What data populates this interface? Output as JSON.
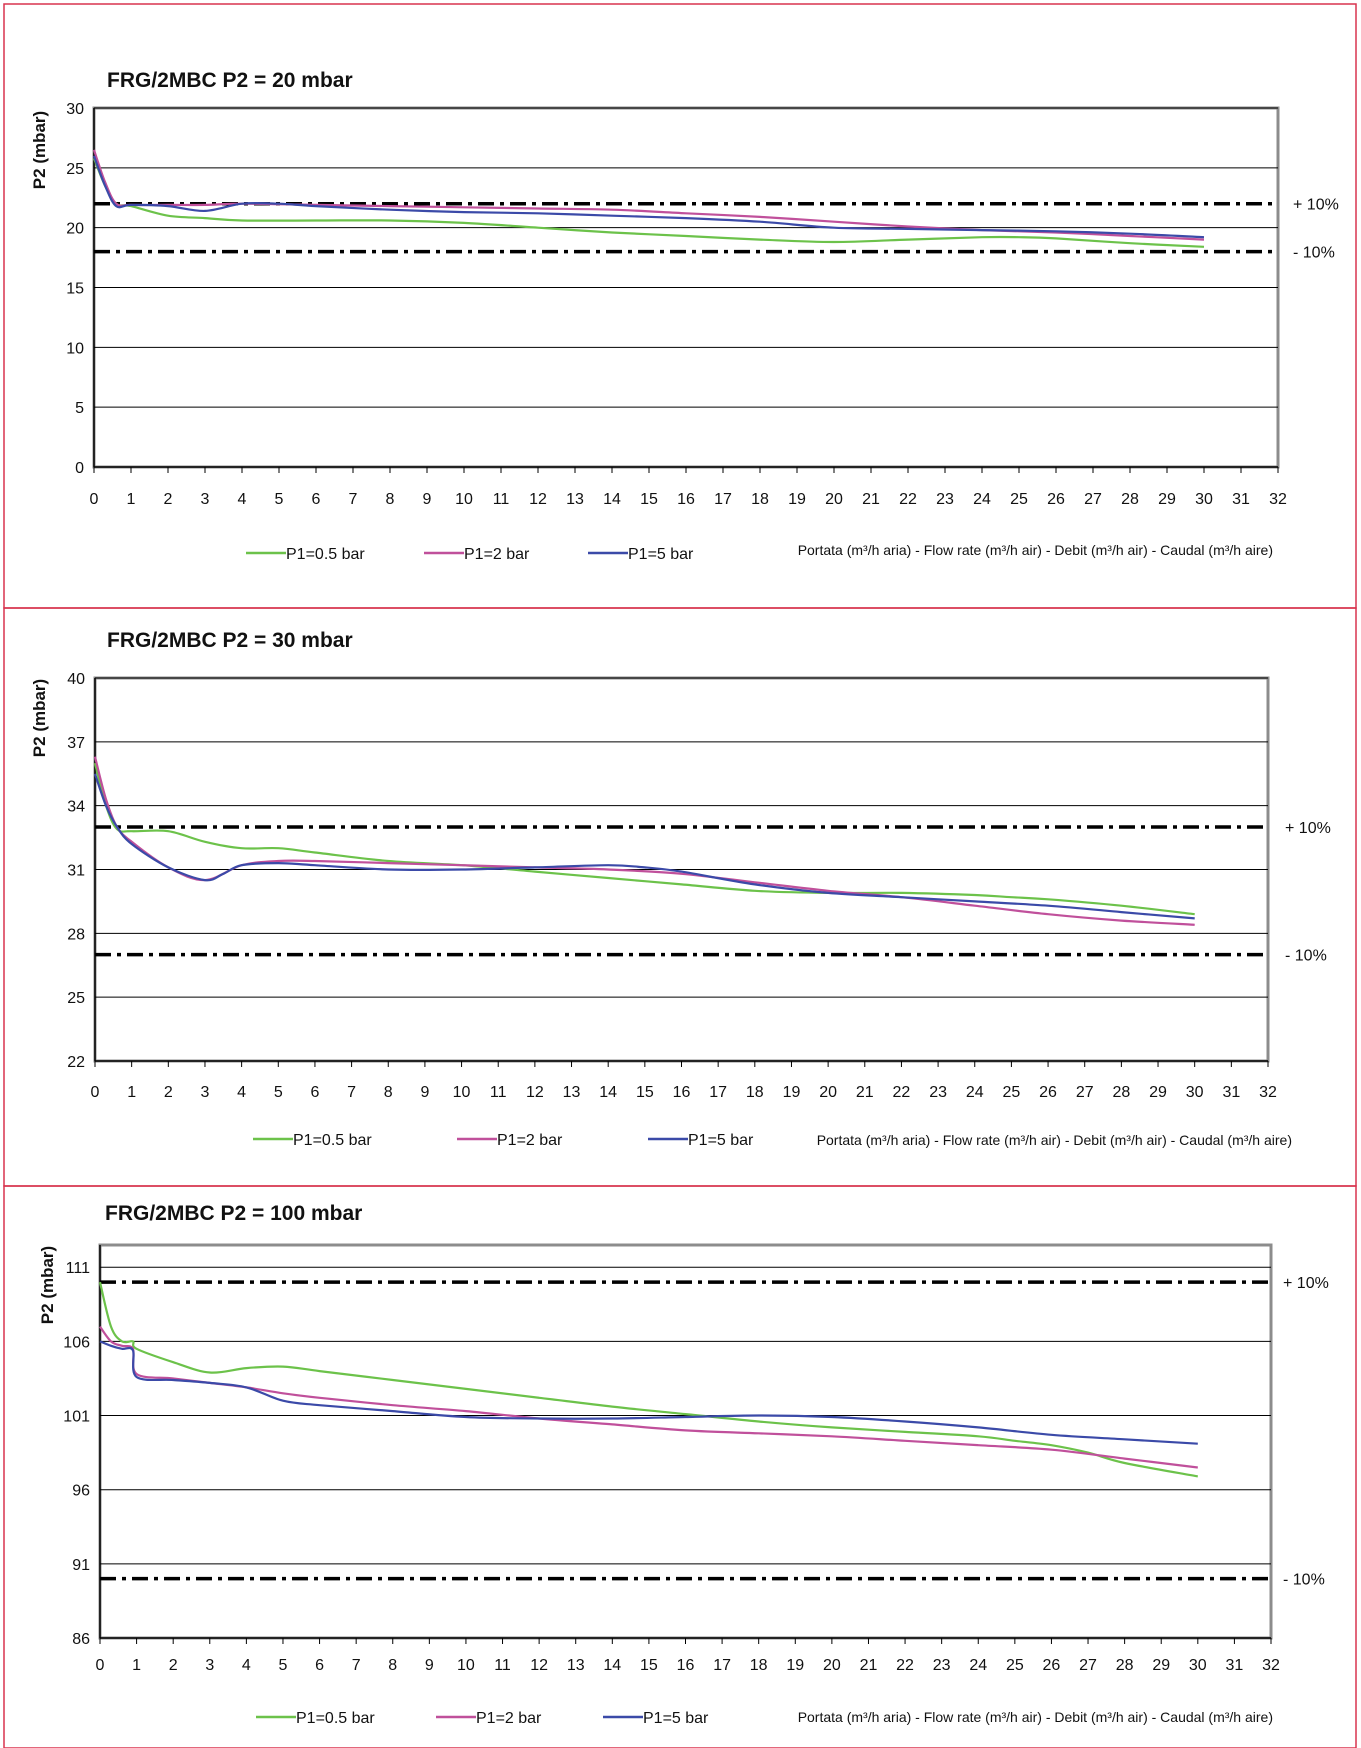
{
  "colors": {
    "frame": "#d8344f",
    "grid": "#000000",
    "plot_border": "#8c8c8c"
  },
  "chart_data": [
    {
      "type": "line",
      "title": "FRG/2MBC   P2 = 20 mbar",
      "ylabel": "P2 (mbar)",
      "xlabel": "Portata (m³/h aria) - Flow rate (m³/h air) - Debit (m³/h air) - Caudal (m³/h aire)",
      "xlim": [
        0,
        32
      ],
      "ylim": [
        0,
        30
      ],
      "x_ticks": [
        0,
        1,
        2,
        3,
        4,
        5,
        6,
        7,
        8,
        9,
        10,
        11,
        12,
        13,
        14,
        15,
        16,
        17,
        18,
        19,
        20,
        21,
        22,
        23,
        24,
        25,
        26,
        27,
        28,
        29,
        30,
        31,
        32
      ],
      "y_ticks": [
        0,
        5,
        10,
        15,
        20,
        25,
        30
      ],
      "tolerance": {
        "upper": 22,
        "lower": 18,
        "upper_label": "+ 10%",
        "lower_label": "- 10%"
      },
      "grid": "horizontal",
      "legend_position": "bottom",
      "series": [
        {
          "name": "P1=0.5 bar",
          "color": "#6cc24a",
          "x": [
            0,
            0.3,
            0.6,
            1,
            2,
            3,
            4,
            6,
            8,
            10,
            12,
            14,
            16,
            18,
            20,
            22,
            24,
            25,
            26,
            28,
            30
          ],
          "y": [
            25.8,
            23.5,
            22.0,
            21.8,
            21.0,
            20.8,
            20.6,
            20.6,
            20.6,
            20.4,
            20.0,
            19.6,
            19.3,
            19.0,
            18.8,
            19.0,
            19.2,
            19.2,
            19.1,
            18.7,
            18.4
          ]
        },
        {
          "name": "P1=2 bar",
          "color": "#c0509b",
          "x": [
            0,
            0.3,
            0.6,
            1,
            2,
            3,
            4,
            6,
            8,
            10,
            12,
            14,
            16,
            18,
            20,
            22,
            24,
            26,
            28,
            30
          ],
          "y": [
            26.5,
            23.8,
            22.0,
            21.9,
            21.9,
            21.9,
            22.0,
            21.9,
            21.8,
            21.7,
            21.6,
            21.5,
            21.2,
            20.9,
            20.5,
            20.1,
            19.8,
            19.6,
            19.3,
            19.0
          ]
        },
        {
          "name": "P1=5 bar",
          "color": "#3b4aa8",
          "x": [
            0,
            0.3,
            0.6,
            1,
            2,
            3,
            4,
            5,
            6,
            8,
            10,
            12,
            14,
            16,
            18,
            20,
            22,
            24,
            26,
            28,
            30
          ],
          "y": [
            26.0,
            23.5,
            21.8,
            21.9,
            21.8,
            21.4,
            22.0,
            22.0,
            21.8,
            21.5,
            21.3,
            21.2,
            21.0,
            20.8,
            20.5,
            20.0,
            19.9,
            19.8,
            19.7,
            19.5,
            19.2
          ]
        }
      ]
    },
    {
      "type": "line",
      "title": "FRG/2MBC   P2 = 30 mbar",
      "ylabel": "P2 (mbar)",
      "xlabel": "Portata (m³/h aria) - Flow rate (m³/h air) - Debit (m³/h air) - Caudal (m³/h aire)",
      "xlim": [
        0,
        32
      ],
      "ylim": [
        22,
        40
      ],
      "x_ticks": [
        0,
        1,
        2,
        3,
        4,
        5,
        6,
        7,
        8,
        9,
        10,
        11,
        12,
        13,
        14,
        15,
        16,
        17,
        18,
        19,
        20,
        21,
        22,
        23,
        24,
        25,
        26,
        27,
        28,
        29,
        30,
        31,
        32
      ],
      "y_ticks": [
        22,
        25,
        28,
        31,
        34,
        37,
        40
      ],
      "tolerance": {
        "upper": 33,
        "lower": 27,
        "upper_label": "+ 10%",
        "lower_label": "- 10%"
      },
      "grid": "horizontal",
      "legend_position": "bottom",
      "series": [
        {
          "name": "P1=0.5 bar",
          "color": "#6cc24a",
          "x": [
            0,
            0.3,
            0.6,
            1,
            2,
            3,
            4,
            5,
            6,
            8,
            10,
            12,
            14,
            16,
            18,
            20,
            22,
            24,
            25,
            26,
            28,
            30
          ],
          "y": [
            36.0,
            34.0,
            32.9,
            32.8,
            32.8,
            32.3,
            32.0,
            32.0,
            31.8,
            31.4,
            31.2,
            30.9,
            30.6,
            30.3,
            30.0,
            29.9,
            29.9,
            29.8,
            29.7,
            29.6,
            29.3,
            28.9
          ]
        },
        {
          "name": "P1=2 bar",
          "color": "#c0509b",
          "x": [
            0,
            0.3,
            0.6,
            1,
            2,
            3,
            4,
            5,
            6,
            8,
            10,
            12,
            14,
            16,
            18,
            20,
            22,
            24,
            26,
            28,
            30
          ],
          "y": [
            36.3,
            34.3,
            33.0,
            32.3,
            31.1,
            30.5,
            31.2,
            31.4,
            31.4,
            31.3,
            31.2,
            31.1,
            31.0,
            30.8,
            30.4,
            30.0,
            29.7,
            29.3,
            28.9,
            28.6,
            28.4
          ]
        },
        {
          "name": "P1=5 bar",
          "color": "#3b4aa8",
          "x": [
            0,
            0.3,
            0.6,
            1,
            2,
            3,
            3.5,
            4,
            5,
            6,
            8,
            10,
            12,
            14,
            15,
            16,
            18,
            20,
            22,
            24,
            26,
            28,
            30
          ],
          "y": [
            35.5,
            34.0,
            33.0,
            32.2,
            31.1,
            30.5,
            30.8,
            31.2,
            31.3,
            31.2,
            31.0,
            31.0,
            31.1,
            31.2,
            31.1,
            30.9,
            30.3,
            29.9,
            29.7,
            29.5,
            29.3,
            29.0,
            28.7
          ]
        }
      ]
    },
    {
      "type": "line",
      "title": "FRG/2MBC   P2 = 100 mbar",
      "ylabel": "P2 (mbar)",
      "xlabel": "Portata (m³/h aria) - Flow rate (m³/h air) - Debit (m³/h air) - Caudal (m³/h aire)",
      "xlim": [
        0,
        32
      ],
      "ylim": [
        86,
        112.5
      ],
      "x_ticks": [
        0,
        1,
        2,
        3,
        4,
        5,
        6,
        7,
        8,
        9,
        10,
        11,
        12,
        13,
        14,
        15,
        16,
        17,
        18,
        19,
        20,
        21,
        22,
        23,
        24,
        25,
        26,
        27,
        28,
        29,
        30,
        31,
        32
      ],
      "y_ticks": [
        86,
        91,
        96,
        101,
        106,
        111
      ],
      "tolerance": {
        "upper": 110,
        "lower": 90,
        "upper_label": "+ 10%",
        "lower_label": "- 10%"
      },
      "grid": "horizontal",
      "legend_position": "bottom",
      "series": [
        {
          "name": "P1=0.5 bar",
          "color": "#6cc24a",
          "x": [
            0,
            0.3,
            0.6,
            0.9,
            1,
            2,
            3,
            4,
            5,
            6,
            8,
            10,
            12,
            14,
            16,
            18,
            20,
            22,
            24,
            25,
            26,
            27,
            28,
            30
          ],
          "y": [
            110.0,
            107.0,
            106.0,
            106.0,
            105.5,
            104.6,
            103.9,
            104.2,
            104.3,
            104.0,
            103.4,
            102.8,
            102.2,
            101.6,
            101.1,
            100.6,
            100.2,
            99.9,
            99.6,
            99.3,
            99.0,
            98.5,
            97.8,
            96.9
          ]
        },
        {
          "name": "P1=2 bar",
          "color": "#c0509b",
          "x": [
            0,
            0.3,
            0.6,
            0.9,
            1,
            2,
            3,
            4,
            5,
            6,
            8,
            10,
            12,
            14,
            16,
            18,
            20,
            22,
            24,
            26,
            28,
            30
          ],
          "y": [
            107.0,
            106.0,
            105.7,
            105.5,
            103.8,
            103.5,
            103.2,
            102.9,
            102.5,
            102.2,
            101.7,
            101.3,
            100.8,
            100.4,
            100.0,
            99.8,
            99.6,
            99.3,
            99.0,
            98.7,
            98.1,
            97.5
          ]
        },
        {
          "name": "P1=5 bar",
          "color": "#3b4aa8",
          "x": [
            0,
            0.3,
            0.6,
            0.9,
            1,
            2,
            3,
            4,
            5,
            6,
            8,
            10,
            12,
            14,
            16,
            18,
            20,
            22,
            24,
            26,
            28,
            30
          ],
          "y": [
            106.0,
            105.7,
            105.5,
            105.4,
            103.6,
            103.4,
            103.2,
            102.9,
            102.0,
            101.7,
            101.3,
            100.9,
            100.8,
            100.8,
            100.9,
            101.0,
            100.9,
            100.6,
            100.2,
            99.7,
            99.4,
            99.1
          ]
        }
      ]
    }
  ]
}
